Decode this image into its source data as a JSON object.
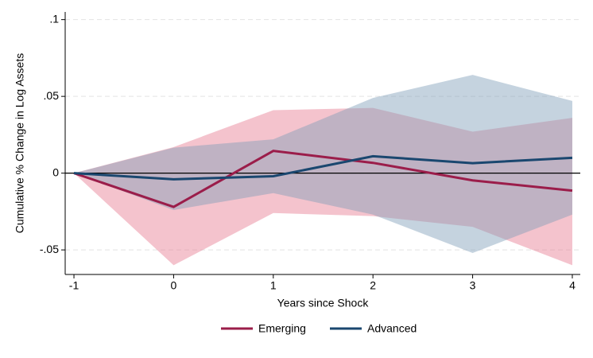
{
  "chart_data": {
    "type": "line",
    "y_label": "Cumulative % Change in Log Assets",
    "x_label": "Years since Shock",
    "x": [
      -1,
      0,
      1,
      2,
      3,
      4
    ],
    "xlim": [
      -1.088,
      4.08
    ],
    "xticks": [
      -1,
      0,
      1,
      2,
      3,
      4
    ],
    "ylim": [
      -0.066,
      0.105
    ],
    "yticks": [
      {
        "value": 0.1,
        "label": ".1"
      },
      {
        "value": 0.05,
        "label": ".05"
      },
      0,
      {
        "value": -0.05,
        "label": "-.05"
      }
    ],
    "grid": true,
    "reference_line": 0,
    "legend": "bottom",
    "series": [
      {
        "name": "Emerging",
        "color": "#9b1d4a",
        "band_color": "#e77a90",
        "values": [
          0,
          -0.022,
          0.0145,
          0.0067,
          -0.0047,
          -0.0114
        ],
        "lower": [
          0,
          -0.06,
          -0.026,
          -0.028,
          -0.035,
          -0.06
        ],
        "upper": [
          0,
          0.017,
          0.041,
          0.0425,
          0.027,
          0.036
        ]
      },
      {
        "name": "Advanced",
        "color": "#1a476f",
        "band_color": "#7f9db8",
        "values": [
          0,
          -0.004,
          -0.002,
          0.011,
          0.0065,
          0.01
        ],
        "lower": [
          0,
          -0.024,
          -0.013,
          -0.027,
          -0.052,
          -0.027
        ],
        "upper": [
          0,
          0.0166,
          0.022,
          0.049,
          0.064,
          0.047
        ]
      }
    ]
  }
}
